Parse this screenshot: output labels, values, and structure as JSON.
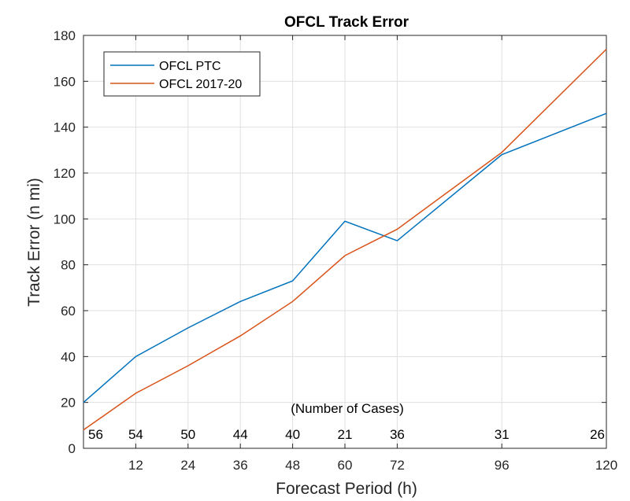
{
  "chart_data": {
    "type": "line",
    "title": "OFCL Track Error",
    "xlabel": "Forecast Period (h)",
    "ylabel": "Track Error (n mi)",
    "xlim": [
      0,
      120
    ],
    "ylim": [
      0,
      180
    ],
    "xticks": [
      12,
      24,
      36,
      48,
      60,
      72,
      96,
      120
    ],
    "yticks": [
      0,
      20,
      40,
      60,
      80,
      100,
      120,
      140,
      160,
      180
    ],
    "grid": true,
    "legend_position": "top-left",
    "series": [
      {
        "name": "OFCL PTC",
        "color": "#0072BD",
        "x": [
          0,
          12,
          24,
          36,
          48,
          60,
          72,
          96,
          120
        ],
        "y": [
          20,
          40,
          52.5,
          64,
          73,
          99,
          90.5,
          128,
          146
        ]
      },
      {
        "name": "OFCL 2017-20",
        "color": "#D95319",
        "x": [
          0,
          12,
          24,
          36,
          48,
          60,
          72,
          96,
          120
        ],
        "y": [
          8,
          24,
          36,
          49,
          64,
          84,
          95.5,
          129,
          174
        ]
      }
    ],
    "annotation": {
      "label": "(Number of Cases)",
      "cases": [
        {
          "x": 0,
          "value": "56"
        },
        {
          "x": 12,
          "value": "54"
        },
        {
          "x": 24,
          "value": "50"
        },
        {
          "x": 36,
          "value": "44"
        },
        {
          "x": 48,
          "value": "40"
        },
        {
          "x": 60,
          "value": "21"
        },
        {
          "x": 72,
          "value": "36"
        },
        {
          "x": 96,
          "value": "31"
        },
        {
          "x": 120,
          "value": "26"
        }
      ]
    }
  }
}
